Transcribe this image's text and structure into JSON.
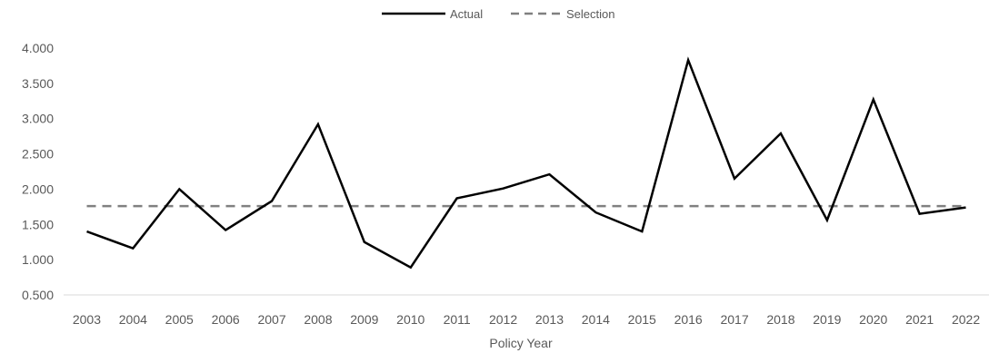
{
  "chart_data": {
    "type": "line",
    "title": "",
    "xlabel": "Policy Year",
    "ylabel": "",
    "categories": [
      "2003",
      "2004",
      "2005",
      "2006",
      "2007",
      "2008",
      "2009",
      "2010",
      "2011",
      "2012",
      "2013",
      "2014",
      "2015",
      "2016",
      "2017",
      "2018",
      "2019",
      "2020",
      "2021",
      "2022"
    ],
    "ylim": [
      0.5,
      4.0
    ],
    "yticks": [
      "4.000",
      "3.500",
      "3.000",
      "2.500",
      "2.000",
      "1.500",
      "1.000",
      "0.500"
    ],
    "ytick_values": [
      4.0,
      3.5,
      3.0,
      2.5,
      2.0,
      1.5,
      1.0,
      0.5
    ],
    "grid": false,
    "legend_position": "top-center",
    "series": [
      {
        "name": "Actual",
        "style": "solid",
        "color": "#000000",
        "values": [
          1.4,
          1.16,
          2.0,
          1.42,
          1.83,
          2.92,
          1.25,
          0.89,
          1.87,
          2.01,
          2.21,
          1.67,
          1.4,
          3.83,
          2.15,
          2.79,
          1.56,
          3.27,
          1.65,
          1.74
        ]
      },
      {
        "name": "Selection",
        "style": "dashed",
        "color": "#808080",
        "values": [
          1.76,
          1.76,
          1.76,
          1.76,
          1.76,
          1.76,
          1.76,
          1.76,
          1.76,
          1.76,
          1.76,
          1.76,
          1.76,
          1.76,
          1.76,
          1.76,
          1.76,
          1.76,
          1.76,
          1.76
        ]
      }
    ]
  }
}
